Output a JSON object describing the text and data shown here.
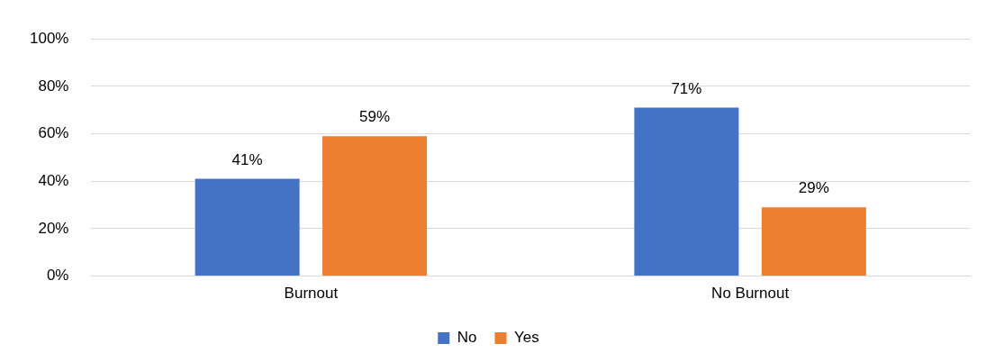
{
  "chart_data": {
    "type": "bar",
    "categories": [
      "Burnout",
      "No Burnout"
    ],
    "series": [
      {
        "name": "No",
        "color": "#4472c4",
        "values": [
          41,
          71
        ],
        "value_labels": [
          "41%",
          "71%"
        ]
      },
      {
        "name": "Yes",
        "color": "#ed7d31",
        "values": [
          59,
          29
        ],
        "value_labels": [
          "59%",
          "29%"
        ]
      }
    ],
    "ylim": [
      0,
      100
    ],
    "yticks": [
      {
        "value": 0,
        "label": "0%"
      },
      {
        "value": 20,
        "label": "20%"
      },
      {
        "value": 40,
        "label": "40%"
      },
      {
        "value": 60,
        "label": "60%"
      },
      {
        "value": 80,
        "label": "80%"
      },
      {
        "value": 100,
        "label": "100%"
      }
    ],
    "grid": "y",
    "legend": "bottom"
  }
}
